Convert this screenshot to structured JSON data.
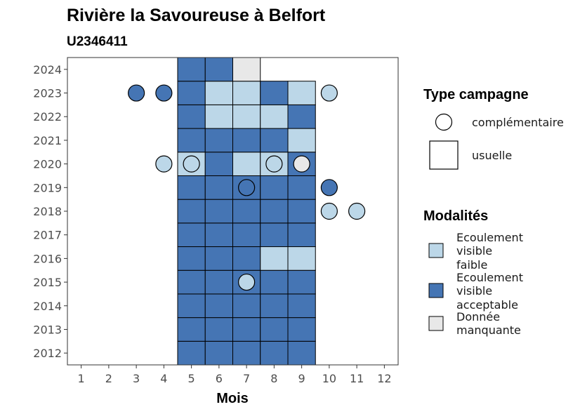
{
  "chart_data": {
    "type": "heatmap",
    "title": "Rivière la Savoureuse à Belfort",
    "subtitle": "U2346411",
    "xlabel": "Mois",
    "ylabel": "",
    "x_ticks": [
      "1",
      "2",
      "3",
      "4",
      "5",
      "6",
      "7",
      "8",
      "9",
      "10",
      "11",
      "12"
    ],
    "y_ticks": [
      "2012",
      "2013",
      "2014",
      "2015",
      "2016",
      "2017",
      "2018",
      "2019",
      "2020",
      "2021",
      "2022",
      "2023",
      "2024"
    ],
    "xlim": [
      0.5,
      12.5
    ],
    "ylim": [
      2011.5,
      2024.5
    ],
    "colors": {
      "Ecoulement visible faible": "#bcd7e8",
      "Ecoulement visible acceptable": "#4575b4",
      "Donnée manquante": "#e8e8e8"
    },
    "legend_type": {
      "title": "Type campagne",
      "items": [
        {
          "label": "complémentaire",
          "shape": "circle"
        },
        {
          "label": "usuelle",
          "shape": "square"
        }
      ]
    },
    "legend_modalites": {
      "title": "Modalités",
      "items": [
        {
          "key": "Ecoulement visible faible",
          "lines": [
            "Ecoulement",
            "visible",
            "faible"
          ]
        },
        {
          "key": "Ecoulement visible acceptable",
          "lines": [
            "Ecoulement",
            "visible",
            "acceptable"
          ]
        },
        {
          "key": "Donnée manquante",
          "lines": [
            "Donnée",
            "manquante"
          ]
        }
      ]
    },
    "squares": [
      {
        "year": 2012,
        "month": 5,
        "modalite": "Ecoulement visible acceptable"
      },
      {
        "year": 2012,
        "month": 6,
        "modalite": "Ecoulement visible acceptable"
      },
      {
        "year": 2012,
        "month": 7,
        "modalite": "Ecoulement visible acceptable"
      },
      {
        "year": 2012,
        "month": 8,
        "modalite": "Ecoulement visible acceptable"
      },
      {
        "year": 2012,
        "month": 9,
        "modalite": "Ecoulement visible acceptable"
      },
      {
        "year": 2013,
        "month": 5,
        "modalite": "Ecoulement visible acceptable"
      },
      {
        "year": 2013,
        "month": 6,
        "modalite": "Ecoulement visible acceptable"
      },
      {
        "year": 2013,
        "month": 7,
        "modalite": "Ecoulement visible acceptable"
      },
      {
        "year": 2013,
        "month": 8,
        "modalite": "Ecoulement visible acceptable"
      },
      {
        "year": 2013,
        "month": 9,
        "modalite": "Ecoulement visible acceptable"
      },
      {
        "year": 2014,
        "month": 5,
        "modalite": "Ecoulement visible acceptable"
      },
      {
        "year": 2014,
        "month": 6,
        "modalite": "Ecoulement visible acceptable"
      },
      {
        "year": 2014,
        "month": 7,
        "modalite": "Ecoulement visible acceptable"
      },
      {
        "year": 2014,
        "month": 8,
        "modalite": "Ecoulement visible acceptable"
      },
      {
        "year": 2014,
        "month": 9,
        "modalite": "Ecoulement visible acceptable"
      },
      {
        "year": 2015,
        "month": 5,
        "modalite": "Ecoulement visible acceptable"
      },
      {
        "year": 2015,
        "month": 6,
        "modalite": "Ecoulement visible acceptable"
      },
      {
        "year": 2015,
        "month": 7,
        "modalite": "Ecoulement visible acceptable"
      },
      {
        "year": 2015,
        "month": 8,
        "modalite": "Ecoulement visible acceptable"
      },
      {
        "year": 2015,
        "month": 9,
        "modalite": "Ecoulement visible acceptable"
      },
      {
        "year": 2016,
        "month": 5,
        "modalite": "Ecoulement visible acceptable"
      },
      {
        "year": 2016,
        "month": 6,
        "modalite": "Ecoulement visible acceptable"
      },
      {
        "year": 2016,
        "month": 7,
        "modalite": "Ecoulement visible acceptable"
      },
      {
        "year": 2016,
        "month": 8,
        "modalite": "Ecoulement visible faible"
      },
      {
        "year": 2016,
        "month": 9,
        "modalite": "Ecoulement visible faible"
      },
      {
        "year": 2017,
        "month": 5,
        "modalite": "Ecoulement visible acceptable"
      },
      {
        "year": 2017,
        "month": 6,
        "modalite": "Ecoulement visible acceptable"
      },
      {
        "year": 2017,
        "month": 7,
        "modalite": "Ecoulement visible acceptable"
      },
      {
        "year": 2017,
        "month": 8,
        "modalite": "Ecoulement visible acceptable"
      },
      {
        "year": 2017,
        "month": 9,
        "modalite": "Ecoulement visible acceptable"
      },
      {
        "year": 2018,
        "month": 5,
        "modalite": "Ecoulement visible acceptable"
      },
      {
        "year": 2018,
        "month": 6,
        "modalite": "Ecoulement visible acceptable"
      },
      {
        "year": 2018,
        "month": 7,
        "modalite": "Ecoulement visible acceptable"
      },
      {
        "year": 2018,
        "month": 8,
        "modalite": "Ecoulement visible acceptable"
      },
      {
        "year": 2018,
        "month": 9,
        "modalite": "Ecoulement visible acceptable"
      },
      {
        "year": 2019,
        "month": 5,
        "modalite": "Ecoulement visible acceptable"
      },
      {
        "year": 2019,
        "month": 6,
        "modalite": "Ecoulement visible acceptable"
      },
      {
        "year": 2019,
        "month": 7,
        "modalite": "Ecoulement visible acceptable"
      },
      {
        "year": 2019,
        "month": 8,
        "modalite": "Ecoulement visible acceptable"
      },
      {
        "year": 2019,
        "month": 9,
        "modalite": "Ecoulement visible acceptable"
      },
      {
        "year": 2020,
        "month": 5,
        "modalite": "Ecoulement visible faible"
      },
      {
        "year": 2020,
        "month": 6,
        "modalite": "Ecoulement visible acceptable"
      },
      {
        "year": 2020,
        "month": 7,
        "modalite": "Ecoulement visible faible"
      },
      {
        "year": 2020,
        "month": 8,
        "modalite": "Ecoulement visible faible"
      },
      {
        "year": 2020,
        "month": 9,
        "modalite": "Ecoulement visible acceptable"
      },
      {
        "year": 2021,
        "month": 5,
        "modalite": "Ecoulement visible acceptable"
      },
      {
        "year": 2021,
        "month": 6,
        "modalite": "Ecoulement visible acceptable"
      },
      {
        "year": 2021,
        "month": 7,
        "modalite": "Ecoulement visible acceptable"
      },
      {
        "year": 2021,
        "month": 8,
        "modalite": "Ecoulement visible acceptable"
      },
      {
        "year": 2021,
        "month": 9,
        "modalite": "Ecoulement visible faible"
      },
      {
        "year": 2022,
        "month": 5,
        "modalite": "Ecoulement visible acceptable"
      },
      {
        "year": 2022,
        "month": 6,
        "modalite": "Ecoulement visible faible"
      },
      {
        "year": 2022,
        "month": 7,
        "modalite": "Ecoulement visible faible"
      },
      {
        "year": 2022,
        "month": 8,
        "modalite": "Ecoulement visible faible"
      },
      {
        "year": 2022,
        "month": 9,
        "modalite": "Ecoulement visible acceptable"
      },
      {
        "year": 2023,
        "month": 5,
        "modalite": "Ecoulement visible acceptable"
      },
      {
        "year": 2023,
        "month": 6,
        "modalite": "Ecoulement visible faible"
      },
      {
        "year": 2023,
        "month": 7,
        "modalite": "Ecoulement visible faible"
      },
      {
        "year": 2023,
        "month": 8,
        "modalite": "Ecoulement visible acceptable"
      },
      {
        "year": 2023,
        "month": 9,
        "modalite": "Ecoulement visible faible"
      },
      {
        "year": 2024,
        "month": 5,
        "modalite": "Ecoulement visible acceptable"
      },
      {
        "year": 2024,
        "month": 6,
        "modalite": "Ecoulement visible acceptable"
      },
      {
        "year": 2024,
        "month": 7,
        "modalite": "Donnée manquante"
      }
    ],
    "circles": [
      {
        "year": 2023,
        "month": 3,
        "modalite": "Ecoulement visible acceptable"
      },
      {
        "year": 2023,
        "month": 4,
        "modalite": "Ecoulement visible acceptable"
      },
      {
        "year": 2023,
        "month": 10,
        "modalite": "Ecoulement visible faible"
      },
      {
        "year": 2020,
        "month": 4,
        "modalite": "Ecoulement visible faible"
      },
      {
        "year": 2020,
        "month": 5,
        "modalite": "Ecoulement visible faible"
      },
      {
        "year": 2020,
        "month": 8,
        "modalite": "Ecoulement visible faible"
      },
      {
        "year": 2020,
        "month": 9,
        "modalite": "Donnée manquante"
      },
      {
        "year": 2019,
        "month": 7,
        "modalite": "Ecoulement visible acceptable"
      },
      {
        "year": 2019,
        "month": 10,
        "modalite": "Ecoulement visible acceptable"
      },
      {
        "year": 2018,
        "month": 10,
        "modalite": "Ecoulement visible faible"
      },
      {
        "year": 2018,
        "month": 11,
        "modalite": "Ecoulement visible faible"
      },
      {
        "year": 2015,
        "month": 7,
        "modalite": "Ecoulement visible faible"
      }
    ]
  }
}
